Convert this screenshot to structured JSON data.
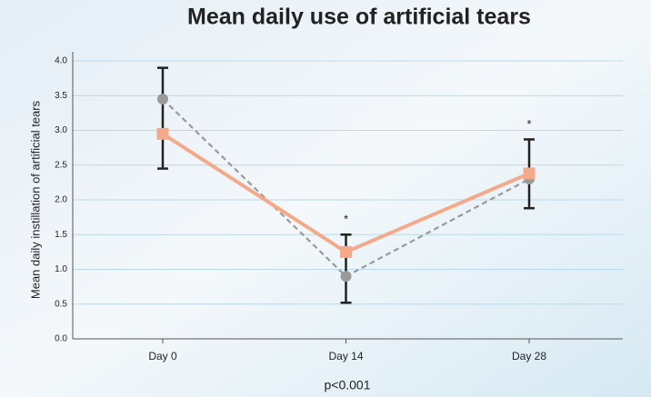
{
  "chart_data": {
    "type": "line",
    "title": "Mean daily use of artificial tears",
    "y_label": "Mean daily instillation of artificial tears",
    "categories": [
      "Day 0",
      "Day 14",
      "Day 28"
    ],
    "series": [
      {
        "color": "#9a9a9a",
        "dashed": true,
        "marker": "circle",
        "values": [
          3.45,
          0.9,
          2.3
        ]
      },
      {
        "color": "#f4a98a",
        "dashed": false,
        "marker": "square",
        "values": [
          2.95,
          1.25,
          2.38
        ]
      }
    ],
    "error_bars": [
      {
        "low": 2.45,
        "high": 3.9
      },
      {
        "low": 0.52,
        "high": 1.5
      },
      {
        "low": 1.88,
        "high": 2.87
      }
    ],
    "significance": [
      null,
      "*",
      "*"
    ],
    "note": "p<0.001",
    "ylim": [
      0,
      4.0
    ],
    "yticks": [
      {
        "value": 0,
        "label": "0.0"
      },
      0.5,
      {
        "value": 1,
        "label": "1.0"
      },
      1.5,
      {
        "value": 2,
        "label": "2.0"
      },
      2.5,
      {
        "value": 3,
        "label": "3.0"
      },
      3.5,
      {
        "value": 4,
        "label": "4.0"
      }
    ],
    "grid": true
  }
}
